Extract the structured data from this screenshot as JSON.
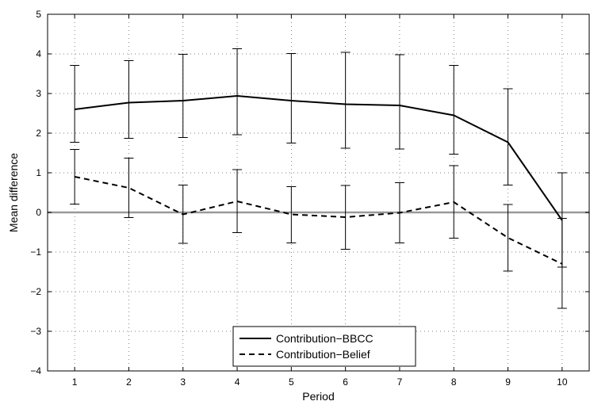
{
  "chart_data": {
    "type": "line",
    "xlabel": "Period",
    "ylabel": "Mean difference",
    "xlim": [
      0.5,
      10.5
    ],
    "ylim": [
      -4,
      5
    ],
    "x_ticks": [
      1,
      2,
      3,
      4,
      5,
      6,
      7,
      8,
      9,
      10
    ],
    "y_ticks": [
      -4,
      -3,
      -2,
      -1,
      0,
      1,
      2,
      3,
      4,
      5
    ],
    "grid": true,
    "zero_line": {
      "y": 0,
      "color": "#999999"
    },
    "legend_position": "bottom-center",
    "series": [
      {
        "name": "Contribution−BBCC",
        "style": "solid",
        "color": "#000000",
        "x": [
          1,
          2,
          3,
          4,
          5,
          6,
          7,
          8,
          9,
          10
        ],
        "values": [
          2.6,
          2.77,
          2.82,
          2.94,
          2.82,
          2.73,
          2.7,
          2.45,
          1.77,
          -0.2
        ],
        "err_low": [
          1.77,
          1.87,
          1.89,
          1.96,
          1.75,
          1.62,
          1.6,
          1.47,
          0.69,
          -1.38
        ],
        "err_high": [
          3.71,
          3.83,
          3.99,
          4.13,
          4.01,
          4.04,
          3.98,
          3.71,
          3.12,
          1.0
        ]
      },
      {
        "name": "Contribution−Belief",
        "style": "dashed",
        "color": "#000000",
        "x": [
          1,
          2,
          3,
          4,
          5,
          6,
          7,
          8,
          9,
          10
        ],
        "values": [
          0.9,
          0.62,
          -0.05,
          0.28,
          -0.05,
          -0.12,
          -0.01,
          0.26,
          -0.64,
          -1.3
        ],
        "err_low": [
          0.21,
          -0.13,
          -0.78,
          -0.51,
          -0.77,
          -0.93,
          -0.77,
          -0.65,
          -1.48,
          -2.42
        ],
        "err_high": [
          1.59,
          1.37,
          0.69,
          1.08,
          0.65,
          0.68,
          0.75,
          1.18,
          0.2,
          -0.15
        ]
      }
    ]
  }
}
